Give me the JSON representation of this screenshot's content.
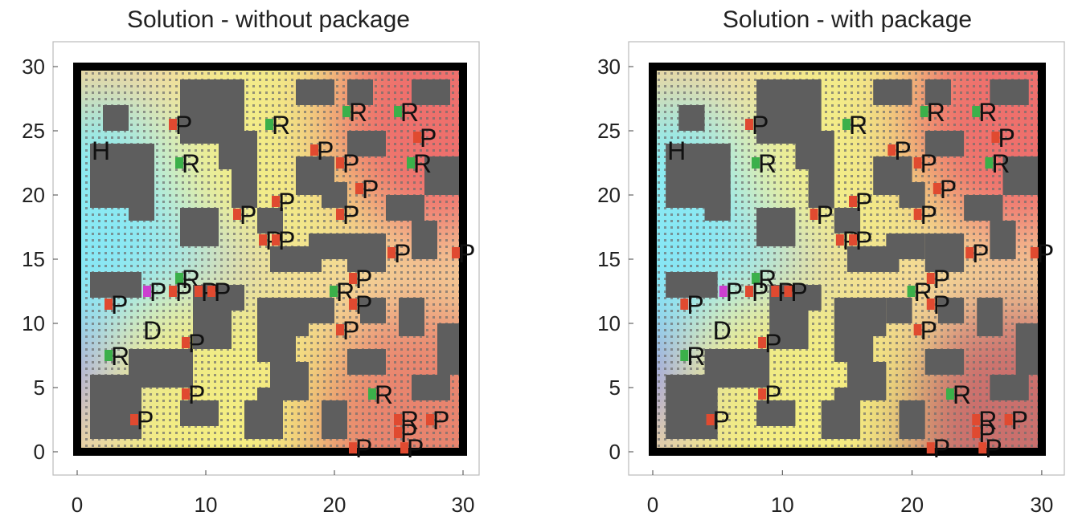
{
  "chart_data": [
    {
      "type": "heatmap",
      "title": "Solution - without package",
      "xlim": [
        0,
        30
      ],
      "ylim": [
        0,
        30
      ],
      "xticks": [
        0,
        10,
        20,
        30
      ],
      "yticks": [
        0,
        5,
        10,
        15,
        20,
        25,
        30
      ],
      "grid": false,
      "gradient_stops": [
        {
          "x": 5,
          "y": 10,
          "color": "#8c88f0"
        },
        {
          "x": 2,
          "y": 18,
          "color": "#86ecf6"
        },
        {
          "x": 11,
          "y": 4,
          "color": "#f6f080"
        },
        {
          "x": 16,
          "y": 24,
          "color": "#f2ee88"
        },
        {
          "x": 28,
          "y": 26,
          "color": "#ee6a6a"
        },
        {
          "x": 27,
          "y": 2,
          "color": "#e8806c"
        }
      ],
      "markers": [
        {
          "label": "H",
          "x": 1,
          "y": 23.5,
          "color": "none"
        },
        {
          "label": "D",
          "x": 5,
          "y": 9.5,
          "color": "none"
        },
        {
          "label": "R",
          "x": 8,
          "y": 22.5,
          "color": "#3bb04a"
        },
        {
          "label": "R",
          "x": 15,
          "y": 25.5,
          "color": "#3bb04a"
        },
        {
          "label": "R",
          "x": 21,
          "y": 26.5,
          "color": "#3bb04a"
        },
        {
          "label": "R",
          "x": 25,
          "y": 26.5,
          "color": "#3bb04a"
        },
        {
          "label": "R",
          "x": 26,
          "y": 22.5,
          "color": "#3bb04a"
        },
        {
          "label": "R",
          "x": 8,
          "y": 13.5,
          "color": "#3bb04a"
        },
        {
          "label": "R",
          "x": 20,
          "y": 12.5,
          "color": "#3bb04a"
        },
        {
          "label": "R",
          "x": 2.5,
          "y": 7.5,
          "color": "#3bb04a"
        },
        {
          "label": "R",
          "x": 23,
          "y": 4.5,
          "color": "#3bb04a"
        },
        {
          "label": "R",
          "x": 25,
          "y": 2.5,
          "color": "#e04a30"
        },
        {
          "label": "P",
          "x": 7.5,
          "y": 25.5,
          "color": "#e04a30"
        },
        {
          "label": "P",
          "x": 18.5,
          "y": 23.5,
          "color": "#e04a30"
        },
        {
          "label": "P",
          "x": 20.5,
          "y": 22.5,
          "color": "#e04a30"
        },
        {
          "label": "P",
          "x": 26.5,
          "y": 24.5,
          "color": "#e04a30"
        },
        {
          "label": "P",
          "x": 22,
          "y": 20.5,
          "color": "#e04a30"
        },
        {
          "label": "P",
          "x": 15.5,
          "y": 19.5,
          "color": "#e04a30"
        },
        {
          "label": "P",
          "x": 12.5,
          "y": 18.5,
          "color": "#e04a30"
        },
        {
          "label": "P",
          "x": 20.5,
          "y": 18.5,
          "color": "#e04a30"
        },
        {
          "label": "P",
          "x": 14.5,
          "y": 16.5,
          "color": "#e04a30"
        },
        {
          "label": "P",
          "x": 15.5,
          "y": 16.5,
          "color": "#e04a30"
        },
        {
          "label": "P",
          "x": 24.5,
          "y": 15.5,
          "color": "#e04a30"
        },
        {
          "label": "P",
          "x": 29.5,
          "y": 15.5,
          "color": "#e04a30"
        },
        {
          "label": "P",
          "x": 21.5,
          "y": 13.5,
          "color": "#e04a30"
        },
        {
          "label": "P",
          "x": 5.5,
          "y": 12.5,
          "color": "#cc3fd0"
        },
        {
          "label": "P",
          "x": 7.5,
          "y": 12.5,
          "color": "#e04a30"
        },
        {
          "label": "P",
          "x": 9.5,
          "y": 12.5,
          "color": "#e04a30"
        },
        {
          "label": "P",
          "x": 10.5,
          "y": 12.5,
          "color": "#e04a30"
        },
        {
          "label": "P",
          "x": 21.5,
          "y": 11.5,
          "color": "#e04a30"
        },
        {
          "label": "P",
          "x": 2.5,
          "y": 11.5,
          "color": "#e04a30"
        },
        {
          "label": "P",
          "x": 20.5,
          "y": 9.5,
          "color": "#e04a30"
        },
        {
          "label": "P",
          "x": 8.5,
          "y": 8.5,
          "color": "#e04a30"
        },
        {
          "label": "P",
          "x": 8.5,
          "y": 4.5,
          "color": "#e04a30"
        },
        {
          "label": "P",
          "x": 4.5,
          "y": 2.5,
          "color": "#e04a30"
        },
        {
          "label": "P",
          "x": 27.5,
          "y": 2.5,
          "color": "#e04a30"
        },
        {
          "label": "P",
          "x": 25,
          "y": 1.5,
          "color": "#e04a30"
        },
        {
          "label": "P",
          "x": 21.5,
          "y": 0.3,
          "color": "#e04a30"
        },
        {
          "label": "P",
          "x": 25.5,
          "y": 0.3,
          "color": "#e04a30"
        }
      ]
    },
    {
      "type": "heatmap",
      "title": "Solution - with package",
      "xlim": [
        0,
        30
      ],
      "ylim": [
        0,
        30
      ],
      "xticks": [
        0,
        10,
        20,
        30
      ],
      "yticks": [
        0,
        5,
        10,
        15,
        20,
        25,
        30
      ],
      "grid": false,
      "gradient_stops": [
        {
          "x": 4,
          "y": 10,
          "color": "#7c78ee"
        },
        {
          "x": 2,
          "y": 18,
          "color": "#86ecf6"
        },
        {
          "x": 11,
          "y": 4,
          "color": "#f6f080"
        },
        {
          "x": 16,
          "y": 24,
          "color": "#f2ee88"
        },
        {
          "x": 28,
          "y": 26,
          "color": "#ee6a6a"
        },
        {
          "x": 28,
          "y": 2,
          "color": "#c86a6a"
        }
      ],
      "markers": [
        {
          "label": "H",
          "x": 1,
          "y": 23.5,
          "color": "none"
        },
        {
          "label": "D",
          "x": 4.5,
          "y": 9.5,
          "color": "none"
        },
        {
          "label": "R",
          "x": 8,
          "y": 22.5,
          "color": "#3bb04a"
        },
        {
          "label": "R",
          "x": 15,
          "y": 25.5,
          "color": "#3bb04a"
        },
        {
          "label": "R",
          "x": 21,
          "y": 26.5,
          "color": "#3bb04a"
        },
        {
          "label": "R",
          "x": 25,
          "y": 26.5,
          "color": "#3bb04a"
        },
        {
          "label": "R",
          "x": 26,
          "y": 22.5,
          "color": "#3bb04a"
        },
        {
          "label": "R",
          "x": 8,
          "y": 13.5,
          "color": "#3bb04a"
        },
        {
          "label": "R",
          "x": 20,
          "y": 12.5,
          "color": "#3bb04a"
        },
        {
          "label": "R",
          "x": 2.5,
          "y": 7.5,
          "color": "#3bb04a"
        },
        {
          "label": "R",
          "x": 23,
          "y": 4.5,
          "color": "#3bb04a"
        },
        {
          "label": "R",
          "x": 25,
          "y": 2.5,
          "color": "#e04a30"
        },
        {
          "label": "P",
          "x": 7.5,
          "y": 25.5,
          "color": "#e04a30"
        },
        {
          "label": "P",
          "x": 18.5,
          "y": 23.5,
          "color": "#e04a30"
        },
        {
          "label": "P",
          "x": 20.5,
          "y": 22.5,
          "color": "#e04a30"
        },
        {
          "label": "P",
          "x": 26.5,
          "y": 24.5,
          "color": "#e04a30"
        },
        {
          "label": "P",
          "x": 22,
          "y": 20.5,
          "color": "#e04a30"
        },
        {
          "label": "P",
          "x": 15.5,
          "y": 19.5,
          "color": "#e04a30"
        },
        {
          "label": "P",
          "x": 12.5,
          "y": 18.5,
          "color": "#e04a30"
        },
        {
          "label": "P",
          "x": 20.5,
          "y": 18.5,
          "color": "#e04a30"
        },
        {
          "label": "P",
          "x": 14.5,
          "y": 16.5,
          "color": "#e04a30"
        },
        {
          "label": "P",
          "x": 15.5,
          "y": 16.5,
          "color": "#e04a30"
        },
        {
          "label": "P",
          "x": 24.5,
          "y": 15.5,
          "color": "#e04a30"
        },
        {
          "label": "P",
          "x": 29.5,
          "y": 15.5,
          "color": "#e04a30"
        },
        {
          "label": "P",
          "x": 21.5,
          "y": 13.5,
          "color": "#e04a30"
        },
        {
          "label": "P",
          "x": 5.5,
          "y": 12.5,
          "color": "#cc3fd0"
        },
        {
          "label": "P",
          "x": 7.5,
          "y": 12.5,
          "color": "#e04a30"
        },
        {
          "label": "P",
          "x": 9.5,
          "y": 12.5,
          "color": "#e04a30"
        },
        {
          "label": "P",
          "x": 10.5,
          "y": 12.5,
          "color": "#e04a30"
        },
        {
          "label": "P",
          "x": 21.5,
          "y": 11.5,
          "color": "#e04a30"
        },
        {
          "label": "P",
          "x": 2.5,
          "y": 11.5,
          "color": "#e04a30"
        },
        {
          "label": "P",
          "x": 20.5,
          "y": 9.5,
          "color": "#e04a30"
        },
        {
          "label": "P",
          "x": 8.5,
          "y": 8.5,
          "color": "#e04a30"
        },
        {
          "label": "P",
          "x": 8.5,
          "y": 4.5,
          "color": "#e04a30"
        },
        {
          "label": "P",
          "x": 4.5,
          "y": 2.5,
          "color": "#e04a30"
        },
        {
          "label": "P",
          "x": 27.5,
          "y": 2.5,
          "color": "#e04a30"
        },
        {
          "label": "P",
          "x": 25,
          "y": 1.5,
          "color": "#e04a30"
        },
        {
          "label": "P",
          "x": 21.5,
          "y": 0.3,
          "color": "#e04a30"
        },
        {
          "label": "P",
          "x": 25.5,
          "y": 0.3,
          "color": "#e04a30"
        }
      ]
    }
  ],
  "obstacles": [
    {
      "x": 8,
      "y": 24,
      "w": 5,
      "h": 5
    },
    {
      "x": 11,
      "y": 22,
      "w": 3,
      "h": 3
    },
    {
      "x": 12,
      "y": 19,
      "w": 2,
      "h": 3
    },
    {
      "x": 17,
      "y": 27,
      "w": 3,
      "h": 2
    },
    {
      "x": 21,
      "y": 27,
      "w": 2,
      "h": 2
    },
    {
      "x": 26,
      "y": 27,
      "w": 3,
      "h": 2
    },
    {
      "x": 2,
      "y": 25,
      "w": 2,
      "h": 2
    },
    {
      "x": 1,
      "y": 19,
      "w": 5,
      "h": 5
    },
    {
      "x": 4,
      "y": 18,
      "w": 2,
      "h": 2
    },
    {
      "x": 8,
      "y": 16,
      "w": 3,
      "h": 3
    },
    {
      "x": 14,
      "y": 17,
      "w": 2,
      "h": 2
    },
    {
      "x": 17,
      "y": 20,
      "w": 3,
      "h": 3
    },
    {
      "x": 19,
      "y": 19,
      "w": 2,
      "h": 2
    },
    {
      "x": 21,
      "y": 23,
      "w": 3,
      "h": 2
    },
    {
      "x": 24,
      "y": 18,
      "w": 3,
      "h": 2
    },
    {
      "x": 27,
      "y": 20,
      "w": 3,
      "h": 3
    },
    {
      "x": 15,
      "y": 14,
      "w": 4,
      "h": 2
    },
    {
      "x": 18,
      "y": 15,
      "w": 3,
      "h": 2
    },
    {
      "x": 21,
      "y": 14,
      "w": 3,
      "h": 3
    },
    {
      "x": 26,
      "y": 15,
      "w": 2,
      "h": 3
    },
    {
      "x": 1,
      "y": 12,
      "w": 4,
      "h": 2
    },
    {
      "x": 9,
      "y": 11,
      "w": 4,
      "h": 2
    },
    {
      "x": 9,
      "y": 8,
      "w": 3,
      "h": 3
    },
    {
      "x": 14,
      "y": 7,
      "w": 3,
      "h": 5
    },
    {
      "x": 16,
      "y": 9,
      "w": 2,
      "h": 3
    },
    {
      "x": 18,
      "y": 10,
      "w": 2,
      "h": 2
    },
    {
      "x": 22,
      "y": 10,
      "w": 2,
      "h": 2
    },
    {
      "x": 25,
      "y": 9,
      "w": 2,
      "h": 3
    },
    {
      "x": 28,
      "y": 6,
      "w": 2,
      "h": 4
    },
    {
      "x": 21,
      "y": 6,
      "w": 3,
      "h": 2
    },
    {
      "x": 4,
      "y": 5,
      "w": 5,
      "h": 3
    },
    {
      "x": 1,
      "y": 1,
      "w": 4,
      "h": 5
    },
    {
      "x": 8,
      "y": 2,
      "w": 3,
      "h": 2
    },
    {
      "x": 13,
      "y": 1,
      "w": 3,
      "h": 3
    },
    {
      "x": 14,
      "y": 3,
      "w": 2,
      "h": 2
    },
    {
      "x": 15,
      "y": 4,
      "w": 3,
      "h": 3
    },
    {
      "x": 19,
      "y": 1,
      "w": 2,
      "h": 3
    },
    {
      "x": 26,
      "y": 4,
      "w": 3,
      "h": 2
    }
  ],
  "colors": {
    "obstacle": "#5e5e5e",
    "border": "#000000",
    "dot": "#6e6e6e"
  }
}
